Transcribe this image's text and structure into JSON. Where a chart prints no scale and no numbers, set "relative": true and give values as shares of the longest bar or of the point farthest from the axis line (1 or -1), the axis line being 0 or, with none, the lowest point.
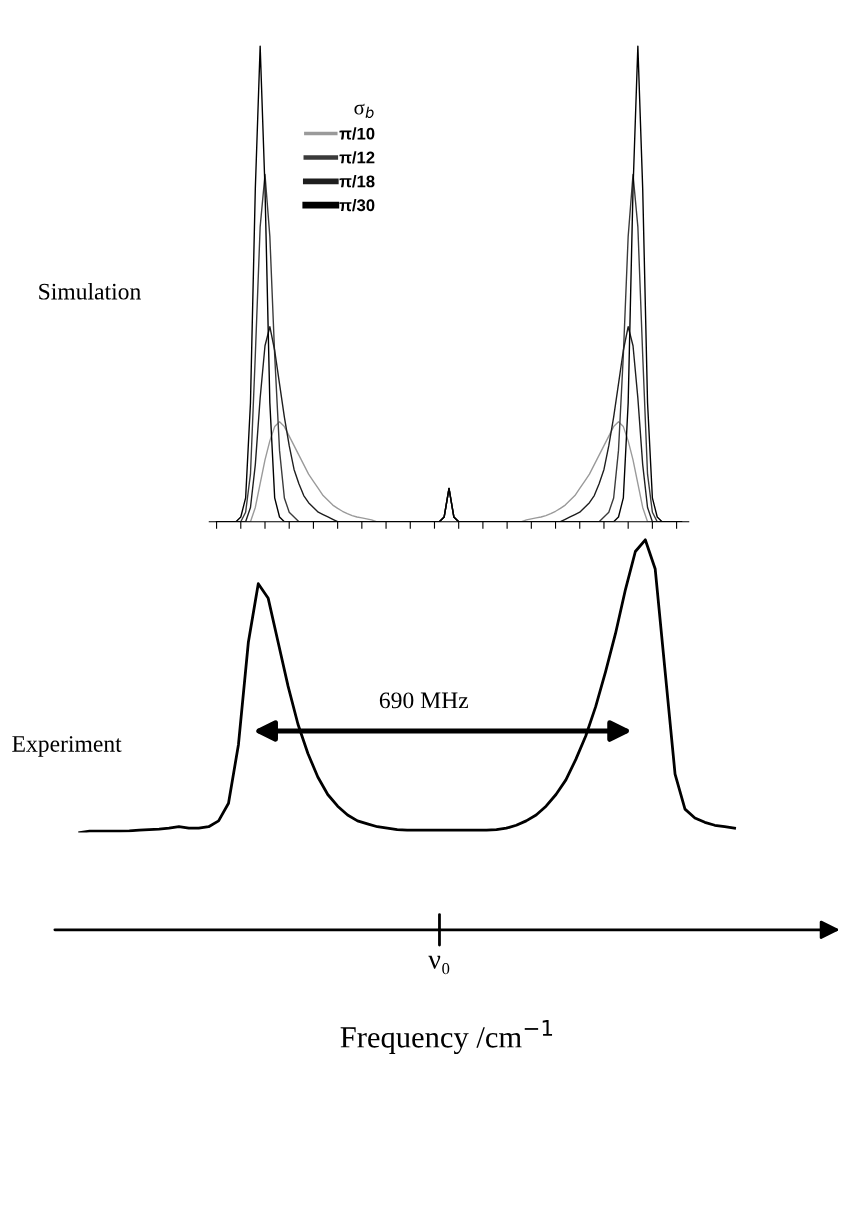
{
  "chart_data": [
    {
      "type": "line",
      "relative": true,
      "ylabel": "Simulation",
      "legend_title": "σ$_{b}$",
      "legend": "top left",
      "categories": [
        null,
        null,
        null,
        null,
        null,
        null,
        null,
        null,
        null,
        null,
        null,
        null,
        null,
        null,
        null,
        null,
        null,
        null,
        null,
        null,
        null,
        null,
        null,
        null,
        null,
        null,
        null,
        null,
        null,
        null,
        null,
        null,
        null,
        null,
        null,
        null,
        null,
        null,
        null,
        null,
        null,
        null,
        null,
        null,
        null,
        null,
        null,
        null,
        null,
        null,
        null,
        null,
        null,
        null,
        null,
        null,
        null,
        null,
        null,
        null,
        null,
        null,
        null,
        null,
        null,
        null,
        null,
        null,
        null,
        null,
        null,
        null,
        null,
        null,
        null,
        null,
        null,
        null,
        null,
        null,
        null,
        null,
        null,
        null,
        null,
        null,
        null,
        null,
        null,
        null,
        null,
        null,
        null,
        null,
        null,
        null,
        null
      ],
      "series": [
        {
          "name": "π/10",
          "color": "#9a9a9a",
          "values": [
            0,
            0,
            0,
            0,
            0,
            0,
            0,
            0,
            0.03,
            0.08,
            0.13,
            0.17,
            0.2,
            0.21,
            0.2,
            0.18,
            0.16,
            0.14,
            0.12,
            0.1,
            0.085,
            0.07,
            0.055,
            0.045,
            0.035,
            0.028,
            0.022,
            0.017,
            0.013,
            0.01,
            0.008,
            0.006,
            0.004,
            0,
            0,
            0,
            0,
            0,
            0,
            0,
            0,
            0,
            0,
            0,
            0,
            0,
            0,
            0.01,
            0.07,
            0.01,
            0,
            0,
            0,
            0,
            0,
            0,
            0,
            0,
            0,
            0,
            0,
            0,
            0,
            0,
            0.004,
            0.006,
            0.008,
            0.01,
            0.013,
            0.017,
            0.022,
            0.028,
            0.035,
            0.045,
            0.055,
            0.07,
            0.085,
            0.1,
            0.12,
            0.14,
            0.16,
            0.18,
            0.2,
            0.21,
            0.2,
            0.17,
            0.13,
            0.08,
            0.03,
            0,
            0,
            0,
            0,
            0,
            0,
            0,
            0
          ]
        },
        {
          "name": "π/12",
          "color": "#3a3a3a",
          "values": [
            0,
            0,
            0,
            0,
            0,
            0,
            0.02,
            0.1,
            0.35,
            0.62,
            0.73,
            0.6,
            0.35,
            0.15,
            0.05,
            0.02,
            0.01,
            0,
            0,
            0,
            0,
            0,
            0,
            0,
            0,
            0,
            0,
            0,
            0,
            0,
            0,
            0,
            0,
            0,
            0,
            0,
            0,
            0,
            0,
            0,
            0,
            0,
            0,
            0,
            0,
            0,
            0,
            0.01,
            0.07,
            0.01,
            0,
            0,
            0,
            0,
            0,
            0,
            0,
            0,
            0,
            0,
            0,
            0,
            0,
            0,
            0,
            0,
            0,
            0,
            0,
            0,
            0,
            0,
            0,
            0,
            0,
            0,
            0,
            0,
            0,
            0,
            0.01,
            0.02,
            0.05,
            0.15,
            0.35,
            0.6,
            0.73,
            0.62,
            0.35,
            0.1,
            0.02,
            0,
            0,
            0,
            0,
            0,
            0
          ]
        },
        {
          "name": "π/18",
          "color": "#1e1e1e",
          "values": [
            0,
            0,
            0,
            0,
            0,
            0,
            0,
            0.03,
            0.12,
            0.26,
            0.37,
            0.41,
            0.36,
            0.29,
            0.22,
            0.16,
            0.11,
            0.08,
            0.055,
            0.04,
            0.03,
            0.02,
            0.015,
            0.01,
            0.005,
            0,
            0,
            0,
            0,
            0,
            0,
            0,
            0,
            0,
            0,
            0,
            0,
            0,
            0,
            0,
            0,
            0,
            0,
            0,
            0,
            0,
            0,
            0.01,
            0.07,
            0.01,
            0,
            0,
            0,
            0,
            0,
            0,
            0,
            0,
            0,
            0,
            0,
            0,
            0,
            0,
            0,
            0,
            0,
            0,
            0,
            0,
            0,
            0,
            0.005,
            0.01,
            0.015,
            0.02,
            0.03,
            0.04,
            0.055,
            0.08,
            0.11,
            0.16,
            0.22,
            0.29,
            0.36,
            0.41,
            0.37,
            0.26,
            0.12,
            0.03,
            0,
            0,
            0,
            0,
            0,
            0,
            0
          ]
        },
        {
          "name": "π/30",
          "color": "#000000",
          "values": [
            0,
            0,
            0,
            0,
            0,
            0.01,
            0.05,
            0.25,
            0.7,
            1,
            0.7,
            0.25,
            0.05,
            0.01,
            0,
            0,
            0,
            0,
            0,
            0,
            0,
            0,
            0,
            0,
            0,
            0,
            0,
            0,
            0,
            0,
            0,
            0,
            0,
            0,
            0,
            0,
            0,
            0,
            0,
            0,
            0,
            0,
            0,
            0,
            0,
            0,
            0,
            0.01,
            0.07,
            0.01,
            0,
            0,
            0,
            0,
            0,
            0,
            0,
            0,
            0,
            0,
            0,
            0,
            0,
            0,
            0,
            0,
            0,
            0,
            0,
            0,
            0,
            0,
            0,
            0,
            0,
            0,
            0,
            0,
            0,
            0,
            0,
            0,
            0,
            0.01,
            0.05,
            0.25,
            0.7,
            1,
            0.7,
            0.25,
            0.05,
            0.01,
            0,
            0,
            0,
            0,
            0
          ]
        }
      ]
    },
    {
      "type": "line",
      "relative": true,
      "ylabel": "Experiment",
      "xlabel": "Frequency /cm$^{−1}$",
      "annotations": [
        "690 MHz",
        "ν₀"
      ],
      "categories": [
        null,
        null,
        null,
        null,
        null,
        null,
        null,
        null,
        null,
        null,
        null,
        null,
        null,
        null,
        null,
        null,
        null,
        null,
        null,
        null,
        null,
        null,
        null,
        null,
        null,
        null,
        null,
        null,
        null,
        null,
        null,
        null,
        null,
        null,
        null,
        null,
        null,
        null,
        null,
        null,
        null,
        null,
        null,
        null,
        null,
        null,
        null,
        null,
        null,
        null,
        null,
        null,
        null,
        null,
        null,
        null,
        null,
        null,
        null,
        null,
        null,
        null,
        null,
        null,
        null,
        null,
        null
      ],
      "series": [
        {
          "color": "#000000",
          "values": [
            0,
            0.005,
            0.005,
            0.005,
            0.005,
            0.006,
            0.008,
            0.01,
            0.012,
            0.015,
            0.02,
            0.015,
            0.015,
            0.02,
            0.04,
            0.1,
            0.3,
            0.65,
            0.85,
            0.8,
            0.65,
            0.5,
            0.37,
            0.27,
            0.19,
            0.13,
            0.09,
            0.06,
            0.04,
            0.03,
            0.02,
            0.015,
            0.01,
            0.008,
            0.008,
            0.008,
            0.008,
            0.008,
            0.008,
            0.008,
            0.008,
            0.008,
            0.01,
            0.015,
            0.025,
            0.04,
            0.06,
            0.09,
            0.13,
            0.18,
            0.25,
            0.33,
            0.43,
            0.55,
            0.68,
            0.83,
            0.96,
            1.0,
            0.9,
            0.55,
            0.2,
            0.08,
            0.05,
            0.035,
            0.025,
            0.02,
            0.015
          ]
        }
      ]
    }
  ]
}
